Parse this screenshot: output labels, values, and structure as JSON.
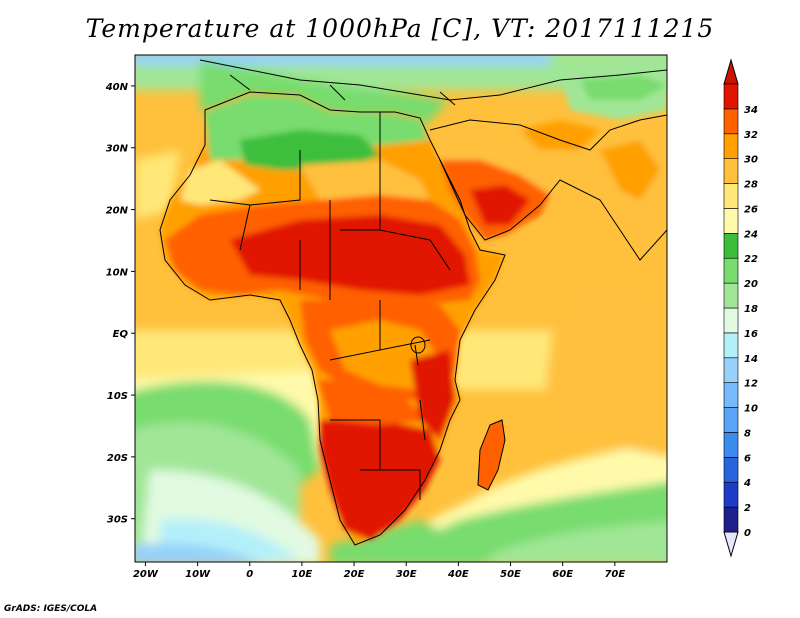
{
  "title": "Temperature at 1000hPa [C], VT: 2017111215",
  "credit": "GrADS: IGES/COLA",
  "map": {
    "lon_range": [
      -22,
      80
    ],
    "lat_range": [
      -37,
      45
    ],
    "lon_labels": [
      "20W",
      "10W",
      "0",
      "10E",
      "20E",
      "30E",
      "40E",
      "50E",
      "60E",
      "70E"
    ],
    "lon_values": [
      -20,
      -10,
      0,
      10,
      20,
      30,
      40,
      50,
      60,
      70
    ],
    "lat_labels": [
      "40N",
      "30N",
      "20N",
      "10N",
      "EQ",
      "10S",
      "20S",
      "30S"
    ],
    "lat_values": [
      40,
      30,
      20,
      10,
      0,
      -10,
      -20,
      -30
    ]
  },
  "colorbar": {
    "labels": [
      "0",
      "2",
      "4",
      "6",
      "8",
      "10",
      "12",
      "14",
      "16",
      "18",
      "20",
      "22",
      "24",
      "26",
      "28",
      "30",
      "32",
      "34"
    ],
    "colors": [
      "#1e1e8c",
      "#1e3cc8",
      "#2864dc",
      "#3c8cf0",
      "#5aa5f5",
      "#78b9fa",
      "#96d2fa",
      "#b4f0fa",
      "#e1fae1",
      "#a0e696",
      "#78dc6e",
      "#3cbe3c",
      "#fffaaa",
      "#ffe878",
      "#ffc03c",
      "#ffa000",
      "#ff6000",
      "#e11400"
    ],
    "under_color": "#e6e6fa",
    "over_color": "#c81400"
  }
}
